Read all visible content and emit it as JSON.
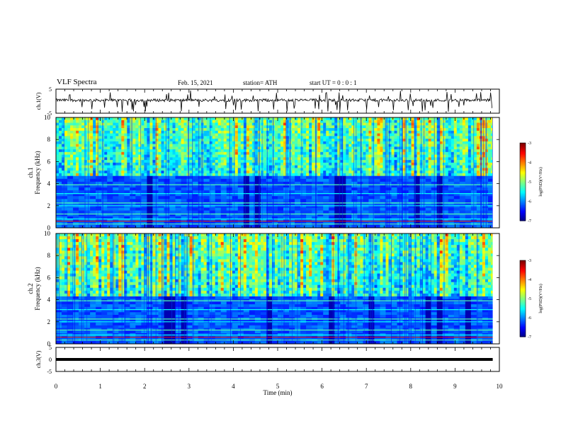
{
  "header": {
    "title": "VLF Spectra",
    "date": "Feb. 15, 2021",
    "station": "station= ATH",
    "start": "start  UT =   0 : 0  : 1"
  },
  "chart_data": [
    {
      "type": "line",
      "title": "",
      "ylabel": "ch.1(V)",
      "ylim": [
        -5,
        5
      ],
      "yticks": [
        "5",
        "-5"
      ],
      "xlim": [
        0,
        10
      ],
      "description_series": "voltage trace near 0 V with frequent short negative spikes",
      "colors": {
        "line": "#000000"
      }
    },
    {
      "type": "heatmap",
      "ylabel_line1": "ch.1",
      "ylabel_line2": "Frequency (kHz)",
      "ylim": [
        0,
        10
      ],
      "yticks": [
        "0",
        "2",
        "4",
        "6",
        "8",
        "10"
      ],
      "xlim": [
        0,
        10
      ],
      "colorbar": {
        "label": "log(PSD)(V²/Hz)",
        "ticks": [
          "-3",
          "-4",
          "-5",
          "-6",
          "-7"
        ],
        "range": [
          -7,
          -3
        ]
      },
      "band_boundary_khz": 4.7
    },
    {
      "type": "heatmap",
      "ylabel_line1": "ch.2",
      "ylabel_line2": "Frequency (kHz)",
      "ylim": [
        0,
        10
      ],
      "yticks": [
        "0",
        "2",
        "4",
        "6",
        "8",
        "10"
      ],
      "xlim": [
        0,
        10
      ],
      "colorbar": {
        "label": "log(PSD)(V²/Hz)",
        "ticks": [
          "-3",
          "-4",
          "-5",
          "-6",
          "-7"
        ],
        "range": [
          -7,
          -3
        ]
      },
      "band_boundary_khz": 4.3
    },
    {
      "type": "line",
      "ylabel": "ch.3(V)",
      "ylim": [
        -5,
        5
      ],
      "yticks": [
        "5",
        "0",
        "-5"
      ],
      "xlim": [
        0,
        10
      ],
      "xlabel": "Time  (min)",
      "xticks": [
        "0",
        "1",
        "2",
        "3",
        "4",
        "5",
        "6",
        "7",
        "8",
        "9",
        "10"
      ],
      "constant_value": 0,
      "colors": {
        "line": "#000000"
      }
    }
  ]
}
